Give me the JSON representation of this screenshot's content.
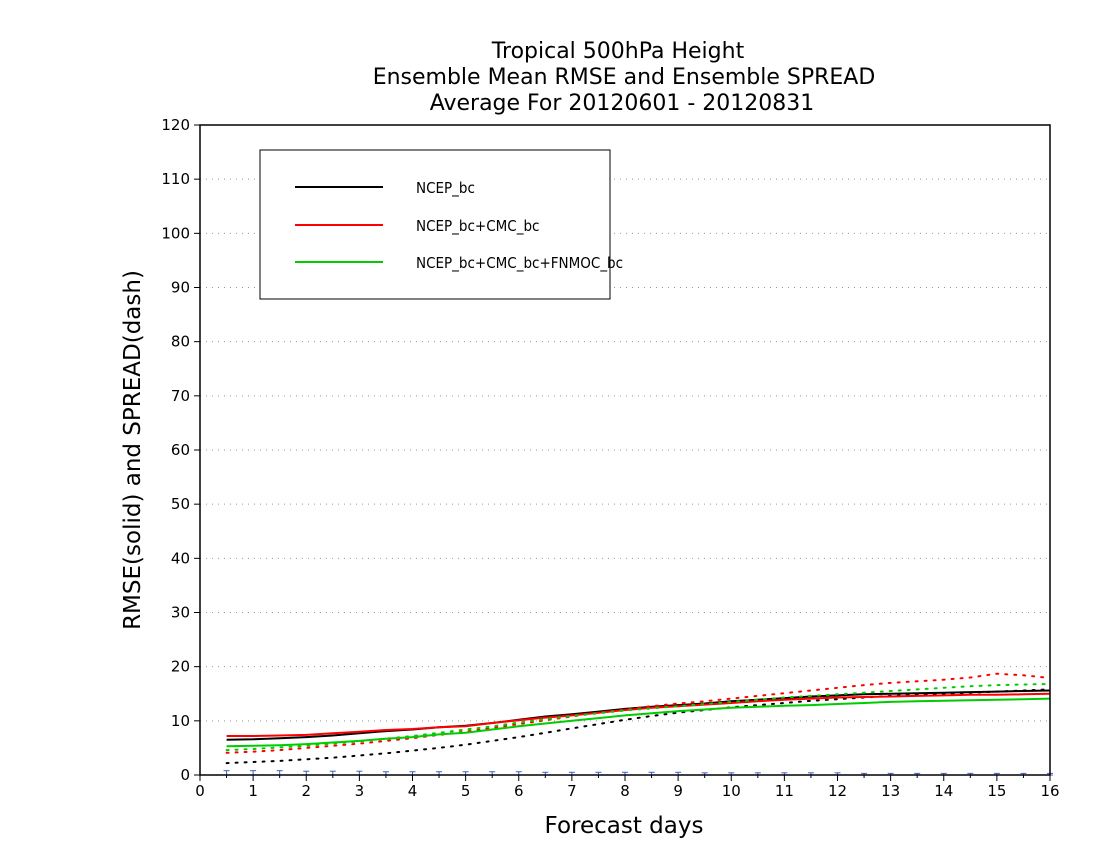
{
  "chart_data": {
    "type": "line",
    "title": [
      "Tropical 500hPa Height",
      "Ensemble Mean RMSE and Ensemble SPREAD",
      "Average For 20120601 - 20120831"
    ],
    "xlabel": "Forecast days",
    "ylabel": "RMSE(solid) and SPREAD(dash)",
    "xlim": [
      0,
      16
    ],
    "ylim": [
      0,
      120
    ],
    "xticks": [
      "0",
      "1",
      "2",
      "3",
      "4",
      "5",
      "6",
      "7",
      "8",
      "9",
      "10",
      "11",
      "12",
      "13",
      "14",
      "15",
      "16"
    ],
    "yticks": [
      "0",
      "10",
      "20",
      "30",
      "40",
      "50",
      "60",
      "70",
      "80",
      "90",
      "100",
      "110",
      "120"
    ],
    "grid": true,
    "legend_position": "top-left",
    "x": [
      0.5,
      1,
      1.5,
      2,
      2.5,
      3,
      3.5,
      4,
      4.5,
      5,
      5.5,
      6,
      6.5,
      7,
      7.5,
      8,
      8.5,
      9,
      9.5,
      10,
      10.5,
      11,
      11.5,
      12,
      12.5,
      13,
      13.5,
      14,
      14.5,
      15,
      15.5,
      16
    ],
    "series": [
      {
        "name": "NCEP_bc",
        "color": "#000000",
        "rmse": [
          6.5,
          6.6,
          6.8,
          7.0,
          7.3,
          7.7,
          8.1,
          8.4,
          8.8,
          9.1,
          9.6,
          10.2,
          10.8,
          11.2,
          11.7,
          12.2,
          12.6,
          12.9,
          13.2,
          13.6,
          13.9,
          14.2,
          14.5,
          14.7,
          14.9,
          15.0,
          15.1,
          15.2,
          15.3,
          15.4,
          15.5,
          15.6
        ],
        "spread": [
          2.2,
          2.4,
          2.6,
          2.9,
          3.2,
          3.6,
          4.0,
          4.5,
          5.0,
          5.6,
          6.3,
          7.0,
          7.8,
          8.6,
          9.4,
          10.2,
          10.9,
          11.5,
          12.0,
          12.5,
          12.9,
          13.3,
          13.7,
          14.0,
          14.3,
          14.6,
          14.8,
          15.0,
          15.2,
          15.4,
          15.6,
          15.8
        ]
      },
      {
        "name": "NCEP_bc+CMC_bc",
        "color": "#ff0000",
        "rmse": [
          7.2,
          7.2,
          7.3,
          7.4,
          7.7,
          8.0,
          8.3,
          8.5,
          8.8,
          9.0,
          9.6,
          10.1,
          10.6,
          11.0,
          11.5,
          12.0,
          12.4,
          12.7,
          13.0,
          13.3,
          13.6,
          13.9,
          14.1,
          14.3,
          14.4,
          14.5,
          14.6,
          14.7,
          14.8,
          14.8,
          14.9,
          15.0
        ],
        "spread": [
          4.1,
          4.3,
          4.6,
          5.0,
          5.4,
          5.8,
          6.3,
          6.8,
          7.4,
          8.0,
          8.7,
          9.4,
          10.1,
          10.8,
          11.5,
          12.1,
          12.7,
          13.2,
          13.6,
          14.1,
          14.6,
          15.1,
          15.6,
          16.1,
          16.6,
          17.0,
          17.3,
          17.6,
          18.0,
          18.7,
          18.4,
          17.9
        ]
      },
      {
        "name": "NCEP_bc+CMC_bc+FNMOC_bc",
        "color": "#00cc00",
        "rmse": [
          5.3,
          5.4,
          5.5,
          5.7,
          6.0,
          6.3,
          6.7,
          7.0,
          7.5,
          7.8,
          8.4,
          9.0,
          9.5,
          10.0,
          10.5,
          11.0,
          11.4,
          11.8,
          12.1,
          12.4,
          12.6,
          12.8,
          12.9,
          13.1,
          13.3,
          13.5,
          13.6,
          13.7,
          13.8,
          13.9,
          14.0,
          14.1
        ],
        "spread": [
          4.6,
          4.8,
          5.1,
          5.4,
          5.8,
          6.2,
          6.7,
          7.2,
          7.8,
          8.4,
          9.0,
          9.7,
          10.3,
          10.9,
          11.4,
          11.9,
          12.3,
          12.7,
          13.1,
          13.5,
          13.9,
          14.3,
          14.6,
          14.9,
          15.2,
          15.5,
          15.8,
          16.1,
          16.4,
          16.6,
          16.7,
          16.8
        ]
      }
    ],
    "difference_markers": {
      "color": "#3a5fd0",
      "values": [
        0.8,
        0.8,
        0.8,
        0.7,
        0.7,
        0.7,
        0.6,
        0.6,
        0.6,
        0.6,
        0.6,
        0.6,
        0.5,
        0.5,
        0.5,
        0.5,
        0.5,
        0.5,
        0.4,
        0.4,
        0.4,
        0.4,
        0.4,
        0.4,
        0.3,
        0.3,
        0.3,
        0.3,
        0.3,
        0.3,
        0.3,
        0.3
      ]
    }
  }
}
